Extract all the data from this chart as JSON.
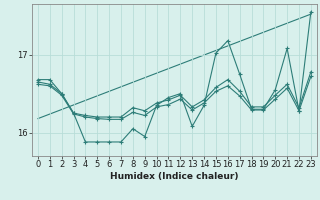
{
  "xlabel": "Humidex (Indice chaleur)",
  "bg_color": "#d8f0ec",
  "line_color": "#2d7d78",
  "grid_color": "#b8ddd8",
  "ylim": [
    15.7,
    17.65
  ],
  "xlim": [
    -0.5,
    23.5
  ],
  "yticks": [
    16,
    17
  ],
  "xticks": [
    0,
    1,
    2,
    3,
    4,
    5,
    6,
    7,
    8,
    9,
    10,
    11,
    12,
    13,
    14,
    15,
    16,
    17,
    18,
    19,
    20,
    21,
    22,
    23
  ],
  "series": [
    {
      "x": [
        0,
        1,
        2,
        3,
        4,
        5,
        6,
        7,
        8,
        9,
        10,
        11,
        12,
        13,
        14,
        15,
        16,
        17,
        18,
        19,
        20,
        21,
        22,
        23
      ],
      "y": [
        16.68,
        16.68,
        16.5,
        16.25,
        15.88,
        15.88,
        15.88,
        15.88,
        16.05,
        15.95,
        16.35,
        16.45,
        16.5,
        16.08,
        16.35,
        17.02,
        17.18,
        16.75,
        16.3,
        16.3,
        16.55,
        17.08,
        16.28,
        17.55
      ]
    },
    {
      "x": [
        0,
        1,
        2,
        3,
        4,
        5,
        6,
        7,
        8,
        9,
        10,
        11,
        12,
        13,
        14,
        15,
        16,
        17,
        18,
        19,
        20,
        21,
        22,
        23
      ],
      "y": [
        16.65,
        16.62,
        16.5,
        16.25,
        16.22,
        16.2,
        16.2,
        16.2,
        16.32,
        16.28,
        16.38,
        16.42,
        16.48,
        16.33,
        16.42,
        16.58,
        16.68,
        16.53,
        16.33,
        16.33,
        16.48,
        16.62,
        16.32,
        16.78
      ]
    },
    {
      "x": [
        0,
        1,
        2,
        3,
        4,
        5,
        6,
        7,
        8,
        9,
        10,
        11,
        12,
        13,
        14,
        15,
        16,
        17,
        18,
        19,
        20,
        21,
        22,
        23
      ],
      "y": [
        16.62,
        16.6,
        16.48,
        16.24,
        16.2,
        16.18,
        16.17,
        16.17,
        16.26,
        16.22,
        16.33,
        16.36,
        16.43,
        16.29,
        16.38,
        16.53,
        16.6,
        16.47,
        16.29,
        16.29,
        16.43,
        16.57,
        16.28,
        16.72
      ]
    }
  ],
  "trendline": {
    "x": [
      0,
      23
    ],
    "y": [
      16.18,
      17.52
    ]
  }
}
